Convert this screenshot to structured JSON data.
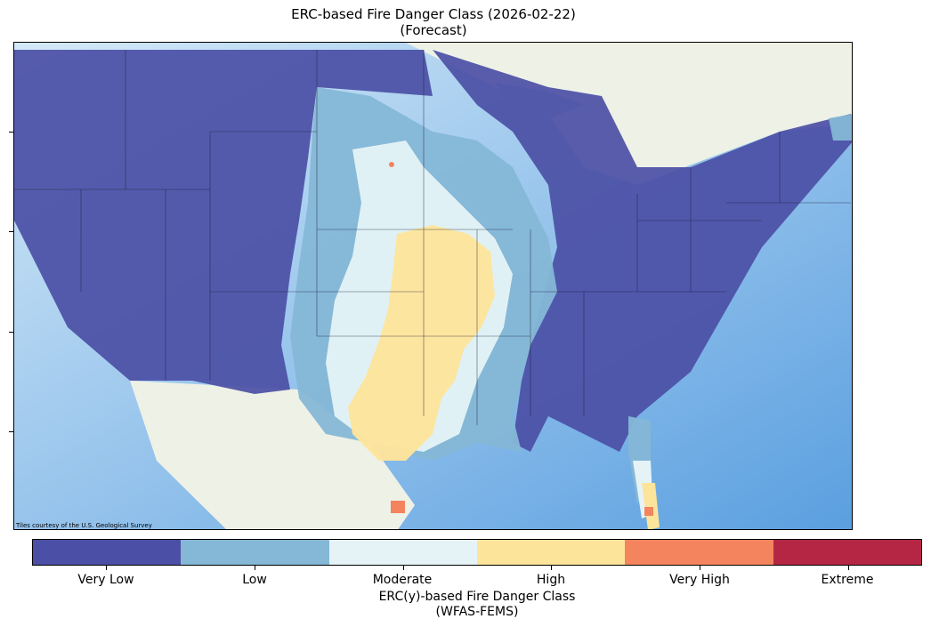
{
  "title_line1": "ERC-based Fire Danger Class (2026-02-22)",
  "title_line2": "(Forecast)",
  "attribution": "Tiles courtesy of the U.S. Geological Survey",
  "colorbar": {
    "title_line1": "ERC(y)-based Fire Danger Class",
    "title_line2": "(WFAS-FEMS)",
    "classes": [
      {
        "label": "Very Low",
        "color": "#4b4fa5"
      },
      {
        "label": "Low",
        "color": "#85b7d6"
      },
      {
        "label": "Moderate",
        "color": "#e5f3f7"
      },
      {
        "label": "High",
        "color": "#fde49b"
      },
      {
        "label": "Very High",
        "color": "#f4845e"
      },
      {
        "label": "Extreme",
        "color": "#b52645"
      }
    ]
  },
  "basemap_colors": {
    "ocean": "#a8d2f2",
    "land": "#eef1e6",
    "lake": "#9fcdf0"
  }
}
